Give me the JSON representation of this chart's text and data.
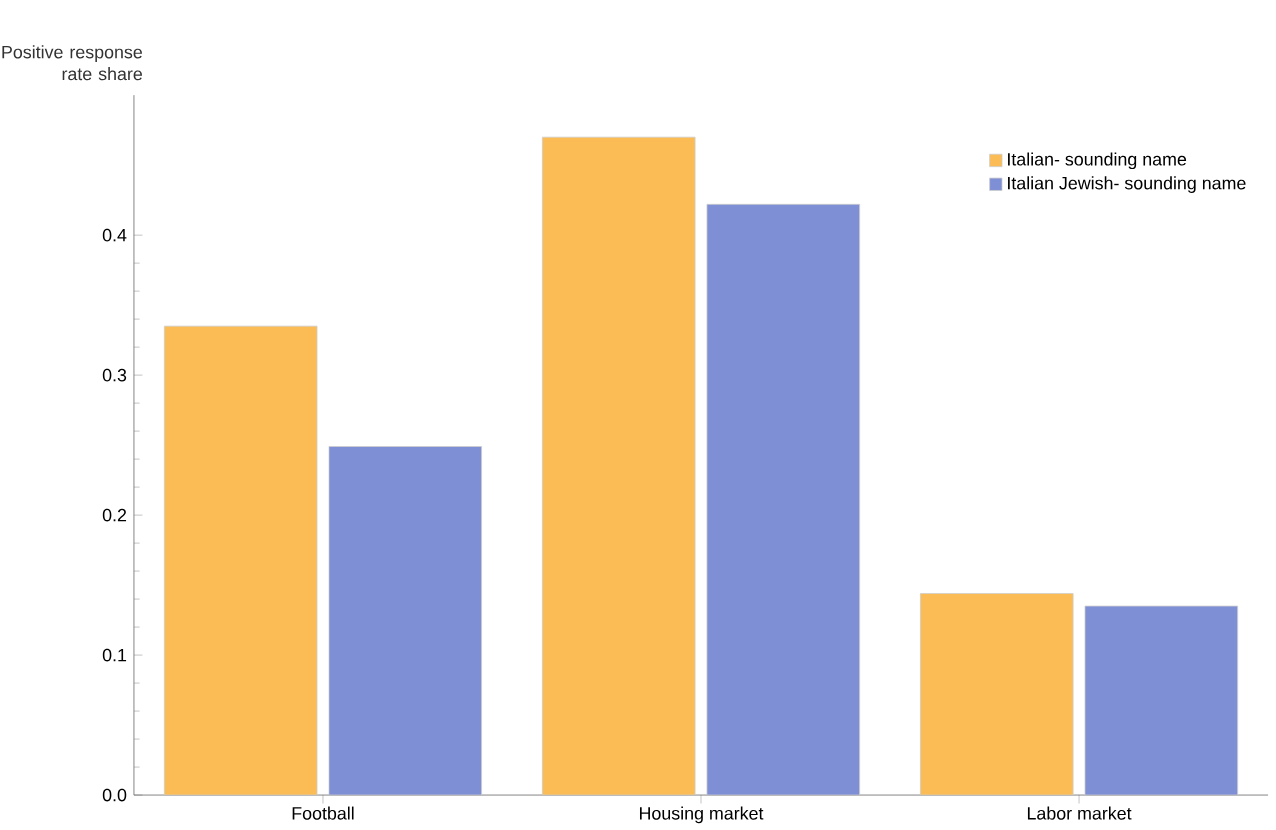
{
  "chart_data": {
    "type": "bar",
    "ylabel": "Positive response rate share",
    "categories": [
      "Football",
      "Housing market",
      "Labor market"
    ],
    "series": [
      {
        "name": "Italian- sounding name",
        "color": "#fbbc55",
        "values": [
          0.335,
          0.47,
          0.144
        ]
      },
      {
        "name": "Italian Jewish- sounding name",
        "color": "#7f8fd6",
        "values": [
          0.249,
          0.422,
          0.135
        ]
      }
    ],
    "ylim": [
      0,
      0.5
    ],
    "yticks": [
      {
        "value": 0,
        "label": "0.0"
      },
      0.1,
      0.2,
      0.3,
      0.4
    ],
    "legend": "top right",
    "grid": false
  }
}
